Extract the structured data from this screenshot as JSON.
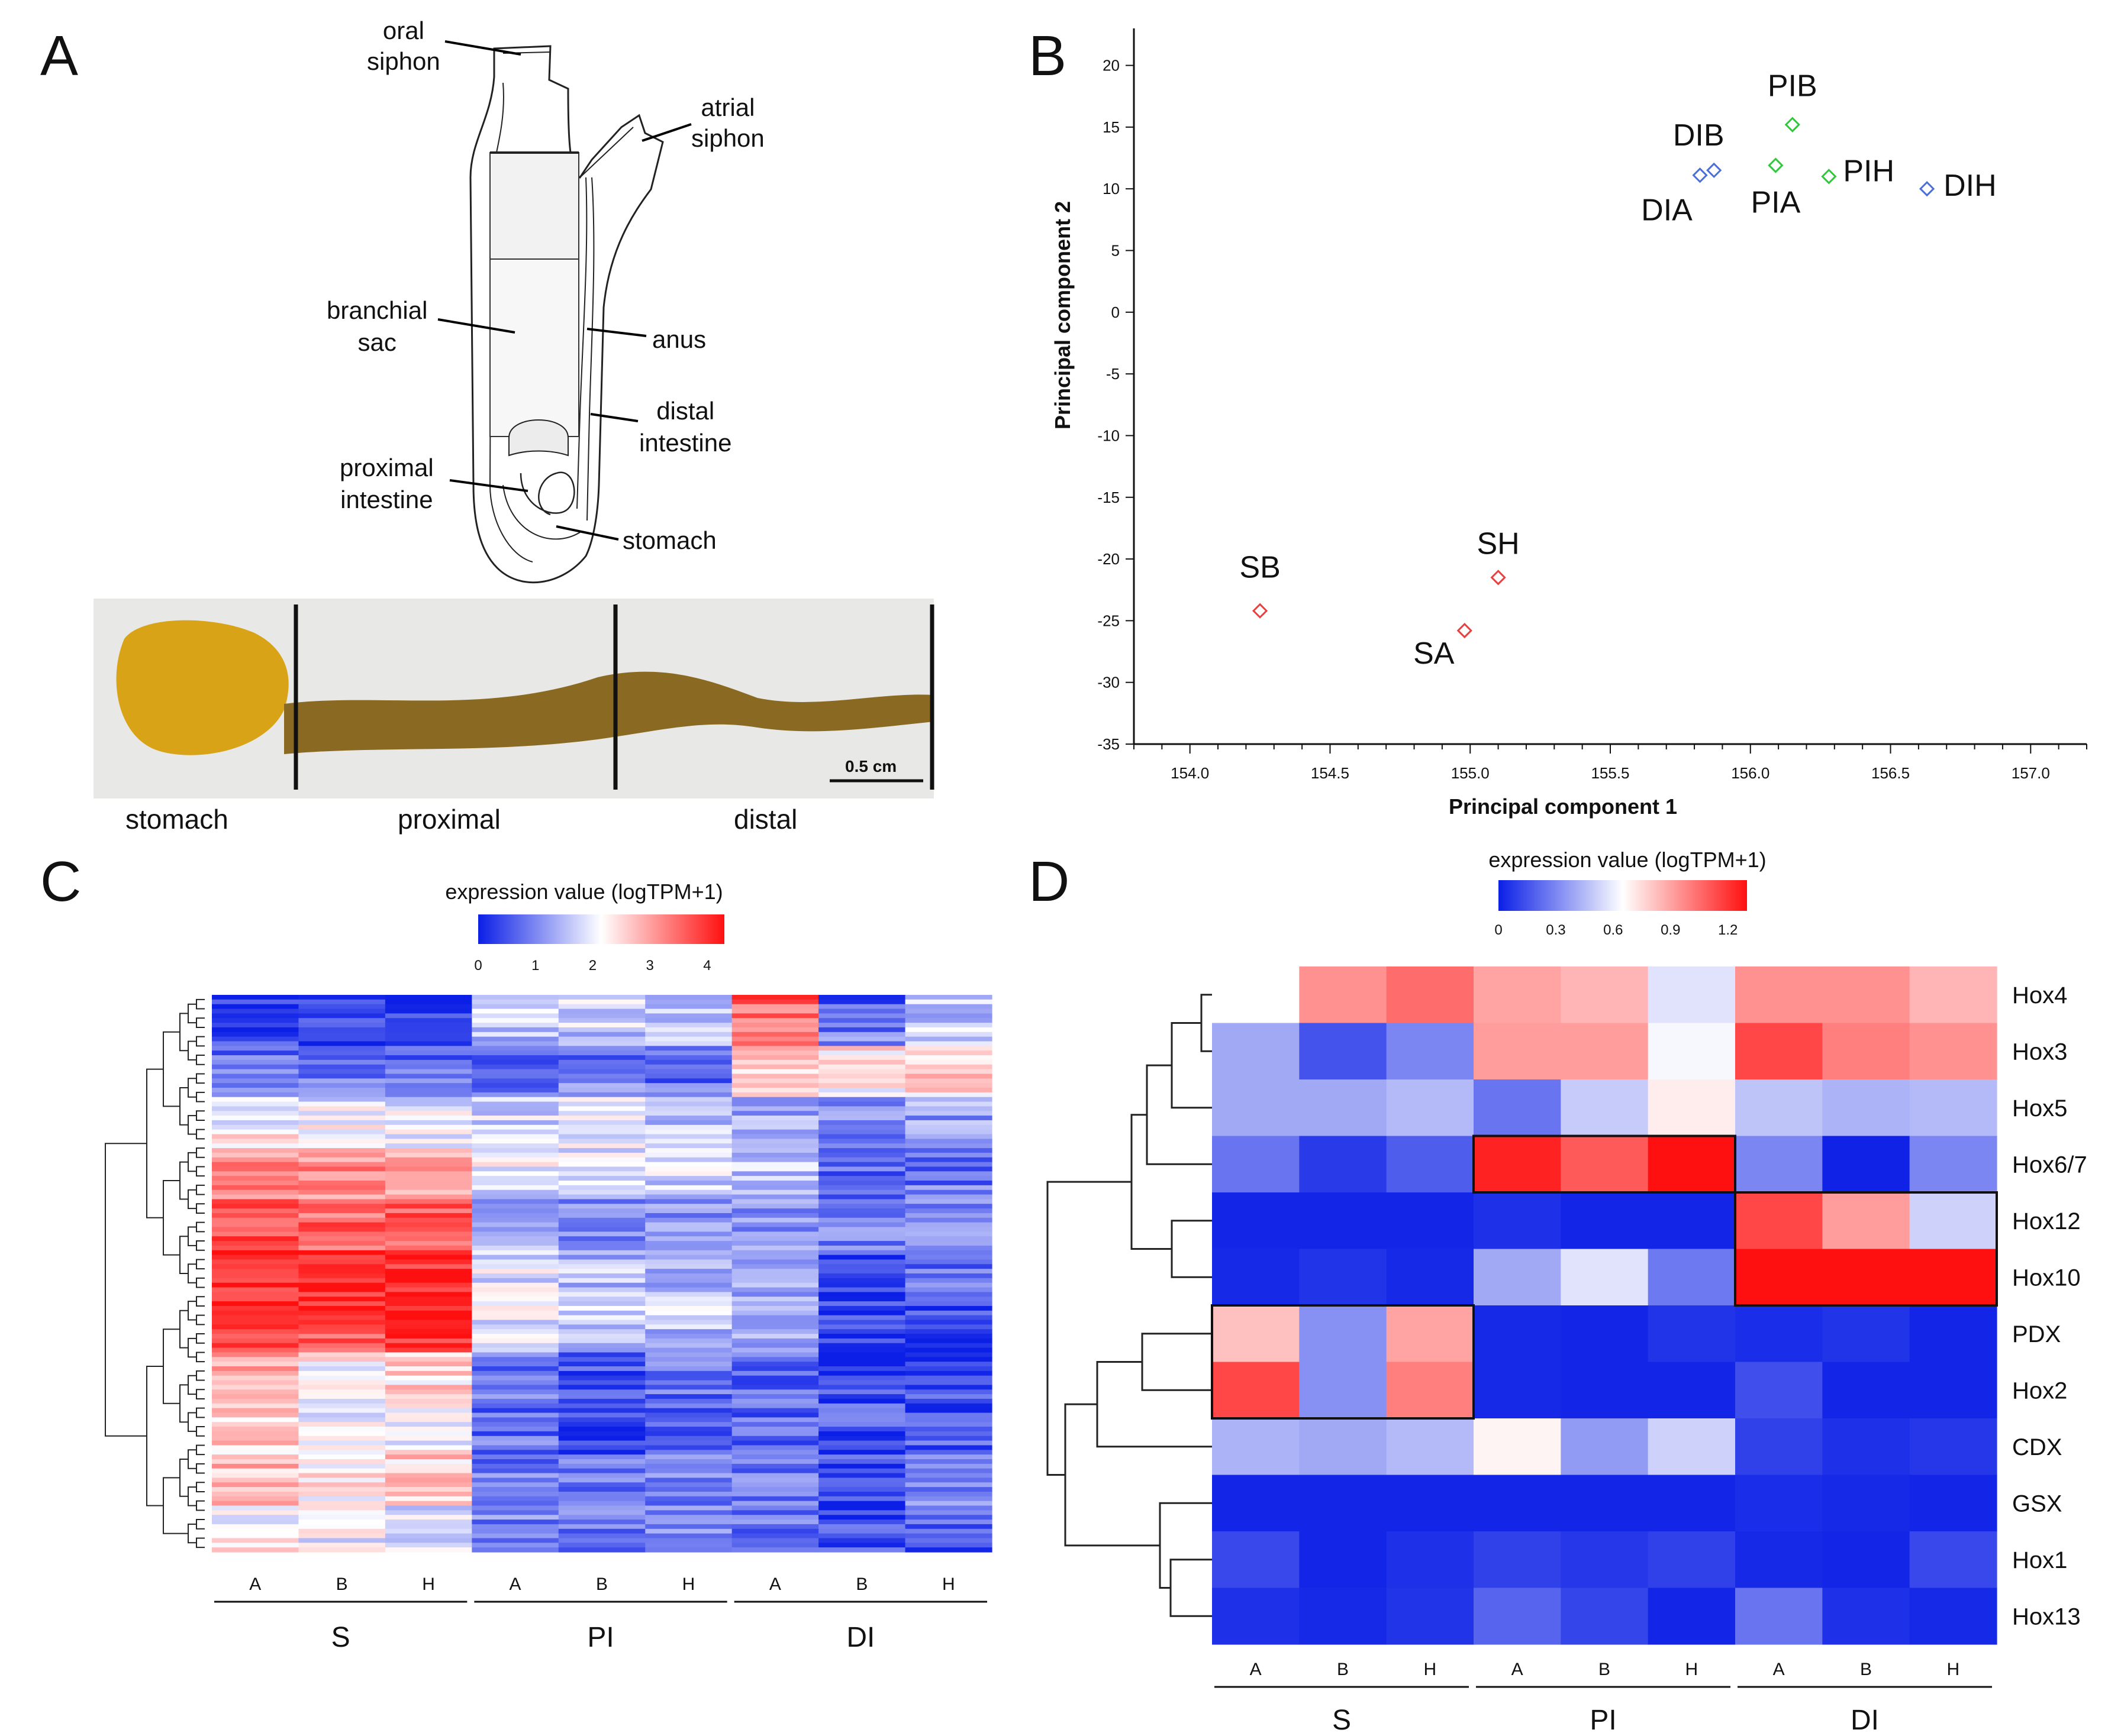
{
  "panels": {
    "a": "A",
    "b": "B",
    "c": "C",
    "d": "D"
  },
  "panel_a": {
    "labels": {
      "oral_siphon": [
        "oral",
        "siphon"
      ],
      "atrial_siphon": [
        "atrial",
        "siphon"
      ],
      "branchial_sac": [
        "branchial",
        "sac"
      ],
      "anus": "anus",
      "distal_intestine": [
        "distal",
        "intestine"
      ],
      "proximal_intestine": [
        "proximal",
        "intestine"
      ],
      "stomach": "stomach"
    },
    "photo_labels": {
      "stomach": "stomach",
      "proximal": "proximal",
      "distal": "distal"
    },
    "scale_bar": "0.5 cm",
    "colors": {
      "stomach": "#d9a317",
      "intestine": "#8a6a22"
    }
  },
  "chart_data": [
    {
      "panel": "B",
      "type": "scatter",
      "xlabel": "Principal component 1",
      "ylabel": "Principal component 2",
      "xlim": [
        153.8,
        157.2
      ],
      "ylim": [
        -35,
        23
      ],
      "xticks": [
        154.0,
        154.5,
        155.0,
        155.5,
        156.0,
        156.5,
        157.0
      ],
      "yticks": [
        20,
        15,
        10,
        5,
        0,
        -5,
        -10,
        -15,
        -20,
        -25,
        -30,
        -35
      ],
      "marker": "diamond",
      "series": [
        {
          "name": "S",
          "color": "#e8403f",
          "points": [
            {
              "label": "SB",
              "x": 154.25,
              "y": -24.2
            },
            {
              "label": "SH",
              "x": 155.1,
              "y": -21.5
            },
            {
              "label": "SA",
              "x": 154.98,
              "y": -25.8
            }
          ]
        },
        {
          "name": "PI",
          "color": "#2fc83a",
          "points": [
            {
              "label": "PIB",
              "x": 156.15,
              "y": 15.2
            },
            {
              "label": "PIA",
              "x": 156.09,
              "y": 11.9
            },
            {
              "label": "PIH",
              "x": 156.28,
              "y": 11.0
            }
          ]
        },
        {
          "name": "DI",
          "color": "#4b6fd6",
          "points": [
            {
              "label": "DIB",
              "x": 155.87,
              "y": 11.5
            },
            {
              "label": "DIA",
              "x": 155.82,
              "y": 11.1
            },
            {
              "label": "DIH",
              "x": 156.63,
              "y": 10.0
            }
          ]
        }
      ]
    },
    {
      "panel": "C",
      "type": "heatmap",
      "legend_title": "expression value (logTPM+1)",
      "scale_ticks": [
        0,
        1,
        2,
        3,
        4
      ],
      "scale_max": 4.3,
      "groups": [
        {
          "name": "S",
          "samples": [
            "A",
            "B",
            "H"
          ]
        },
        {
          "name": "PI",
          "samples": [
            "A",
            "B",
            "H"
          ]
        },
        {
          "name": "DI",
          "samples": [
            "A",
            "B",
            "H"
          ]
        }
      ],
      "row_block_values": [
        [
          0.2,
          0.4,
          0.2,
          1.8,
          1.9,
          1.7,
          3.6,
          0.5,
          1.5
        ],
        [
          0.6,
          0.5,
          0.5,
          0.7,
          0.8,
          0.6,
          2.6,
          2.4,
          2.7
        ],
        [
          2.0,
          1.9,
          1.9,
          1.7,
          1.8,
          1.4,
          1.3,
          1.2,
          1.3
        ],
        [
          3.0,
          3.1,
          2.9,
          2.1,
          2.0,
          1.9,
          1.6,
          0.6,
          0.8
        ],
        [
          3.7,
          3.4,
          3.5,
          1.2,
          1.0,
          1.1,
          1.0,
          1.2,
          1.0
        ],
        [
          4.1,
          4.0,
          3.9,
          1.8,
          1.5,
          1.5,
          1.3,
          0.4,
          0.9
        ],
        [
          4.3,
          4.2,
          4.2,
          2.1,
          1.8,
          1.7,
          1.4,
          0.3,
          0.4
        ],
        [
          3.1,
          2.2,
          2.6,
          0.9,
          0.6,
          0.8,
          0.8,
          0.4,
          0.5
        ],
        [
          2.5,
          1.9,
          2.0,
          0.7,
          0.3,
          0.6,
          0.6,
          0.5,
          0.4
        ],
        [
          2.8,
          2.4,
          2.6,
          0.9,
          0.9,
          0.9,
          0.9,
          0.5,
          1.1
        ],
        [
          2.2,
          2.0,
          1.9,
          1.0,
          0.8,
          1.1,
          0.9,
          0.4,
          0.6
        ]
      ]
    },
    {
      "panel": "D",
      "type": "heatmap",
      "legend_title": "expression value (logTPM+1)",
      "scale_ticks": [
        0,
        0.3,
        0.6,
        0.9,
        1.2
      ],
      "scale_max": 1.3,
      "groups": [
        {
          "name": "S",
          "samples": [
            "A",
            "B",
            "H"
          ]
        },
        {
          "name": "PI",
          "samples": [
            "A",
            "B",
            "H"
          ]
        },
        {
          "name": "DI",
          "samples": [
            "A",
            "B",
            "H"
          ]
        }
      ],
      "genes": [
        "Hox4",
        "Hox3",
        "Hox5",
        "Hox6/7",
        "Hox12",
        "Hox10",
        "PDX",
        "Hox2",
        "CDX",
        "GSX",
        "Hox1",
        "Hox13"
      ],
      "values": [
        [
          0.65,
          0.95,
          1.05,
          0.9,
          0.85,
          0.57,
          0.95,
          0.95,
          0.85
        ],
        [
          0.4,
          0.15,
          0.3,
          0.92,
          0.92,
          0.63,
          1.15,
          1.0,
          0.95
        ],
        [
          0.4,
          0.4,
          0.45,
          0.25,
          0.5,
          0.7,
          0.48,
          0.43,
          0.45
        ],
        [
          0.25,
          0.08,
          0.18,
          1.25,
          1.1,
          1.3,
          0.3,
          0.01,
          0.3
        ],
        [
          0.02,
          0.02,
          0.02,
          0.05,
          0.02,
          0.02,
          1.15,
          0.92,
          0.52
        ],
        [
          0.03,
          0.06,
          0.03,
          0.4,
          0.57,
          0.26,
          1.3,
          1.3,
          1.3
        ],
        [
          0.82,
          0.33,
          0.9,
          0.03,
          0.02,
          0.06,
          0.04,
          0.06,
          0.02
        ],
        [
          1.15,
          0.33,
          1.0,
          0.03,
          0.02,
          0.02,
          0.14,
          0.02,
          0.02
        ],
        [
          0.43,
          0.4,
          0.45,
          0.68,
          0.36,
          0.52,
          0.1,
          0.05,
          0.07
        ],
        [
          0.02,
          0.02,
          0.02,
          0.02,
          0.02,
          0.02,
          0.04,
          0.03,
          0.02
        ],
        [
          0.12,
          0.02,
          0.05,
          0.1,
          0.07,
          0.1,
          0.03,
          0.02,
          0.12
        ],
        [
          0.05,
          0.03,
          0.06,
          0.2,
          0.11,
          0.02,
          0.25,
          0.05,
          0.03
        ]
      ],
      "highlight_boxes": [
        {
          "group": "PI",
          "genes": [
            "Hox6/7"
          ]
        },
        {
          "group": "DI",
          "genes": [
            "Hox12",
            "Hox10"
          ]
        },
        {
          "group": "S",
          "genes": [
            "PDX",
            "Hox2"
          ]
        }
      ]
    }
  ]
}
